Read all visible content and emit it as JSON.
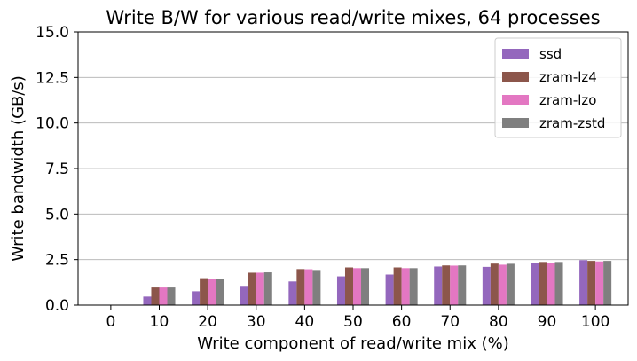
{
  "chart_data": {
    "type": "bar",
    "title": "Write B/W for various read/write mixes, 64 processes",
    "xlabel": "Write component of read/write mix (%)",
    "ylabel": "Write bandwidth (GB/s)",
    "ylim": [
      0,
      15
    ],
    "yticks": [
      "0.0",
      "2.5",
      "5.0",
      "7.5",
      "10.0",
      "12.5",
      "15.0"
    ],
    "categories": [
      "0",
      "10",
      "20",
      "30",
      "40",
      "50",
      "60",
      "70",
      "80",
      "90",
      "100"
    ],
    "grid": "y",
    "legend_position": "top-right",
    "series": [
      {
        "name": "ssd",
        "color": "#9467bd",
        "values": [
          0,
          0.47,
          0.76,
          1.01,
          1.3,
          1.58,
          1.68,
          2.12,
          2.1,
          2.33,
          2.47
        ]
      },
      {
        "name": "zram-lz4",
        "color": "#8c564b",
        "values": [
          0,
          0.97,
          1.48,
          1.78,
          1.98,
          2.07,
          2.07,
          2.18,
          2.28,
          2.37,
          2.43
        ]
      },
      {
        "name": "zram-lzo",
        "color": "#e377c2",
        "values": [
          0,
          0.97,
          1.45,
          1.78,
          1.97,
          2.03,
          2.03,
          2.17,
          2.22,
          2.33,
          2.4
        ]
      },
      {
        "name": "zram-zstd",
        "color": "#7f7f7f",
        "values": [
          0,
          0.97,
          1.45,
          1.8,
          1.93,
          2.03,
          2.03,
          2.18,
          2.27,
          2.37,
          2.43
        ]
      }
    ]
  }
}
